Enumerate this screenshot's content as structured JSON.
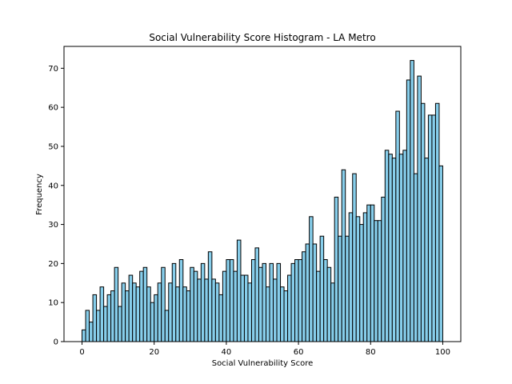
{
  "chart_data": {
    "type": "bar",
    "title": "Social Vulnerability Score Histogram - LA Metro",
    "xlabel": "Social Vulnerability Score",
    "ylabel": "Frequency",
    "xlim": [
      -5,
      105
    ],
    "ylim": [
      0,
      75.6
    ],
    "xticks": [
      0,
      20,
      40,
      60,
      80,
      100
    ],
    "yticks": [
      0,
      10,
      20,
      30,
      40,
      50,
      60,
      70
    ],
    "bin_start": 0,
    "bin_width": 1,
    "bar_color": "#87ceeb",
    "edge_color": "#000000",
    "grid": false,
    "values": [
      3,
      8,
      5,
      12,
      8,
      14,
      9,
      12,
      13,
      19,
      9,
      15,
      13,
      17,
      15,
      14,
      18,
      19,
      14,
      10,
      12,
      15,
      19,
      8,
      15,
      20,
      14,
      21,
      14,
      13,
      19,
      18,
      16,
      20,
      16,
      23,
      16,
      15,
      12,
      18,
      21,
      21,
      18,
      26,
      17,
      17,
      15,
      21,
      24,
      19,
      20,
      14,
      20,
      16,
      20,
      14,
      13,
      17,
      20,
      21,
      21,
      23,
      25,
      32,
      25,
      18,
      27,
      21,
      19,
      15,
      37,
      27,
      44,
      27,
      33,
      43,
      32,
      30,
      33,
      35,
      35,
      31,
      31,
      37,
      49,
      48,
      47,
      59,
      48,
      49,
      67,
      72,
      43,
      68,
      61,
      47,
      58,
      58,
      61,
      45
    ]
  }
}
